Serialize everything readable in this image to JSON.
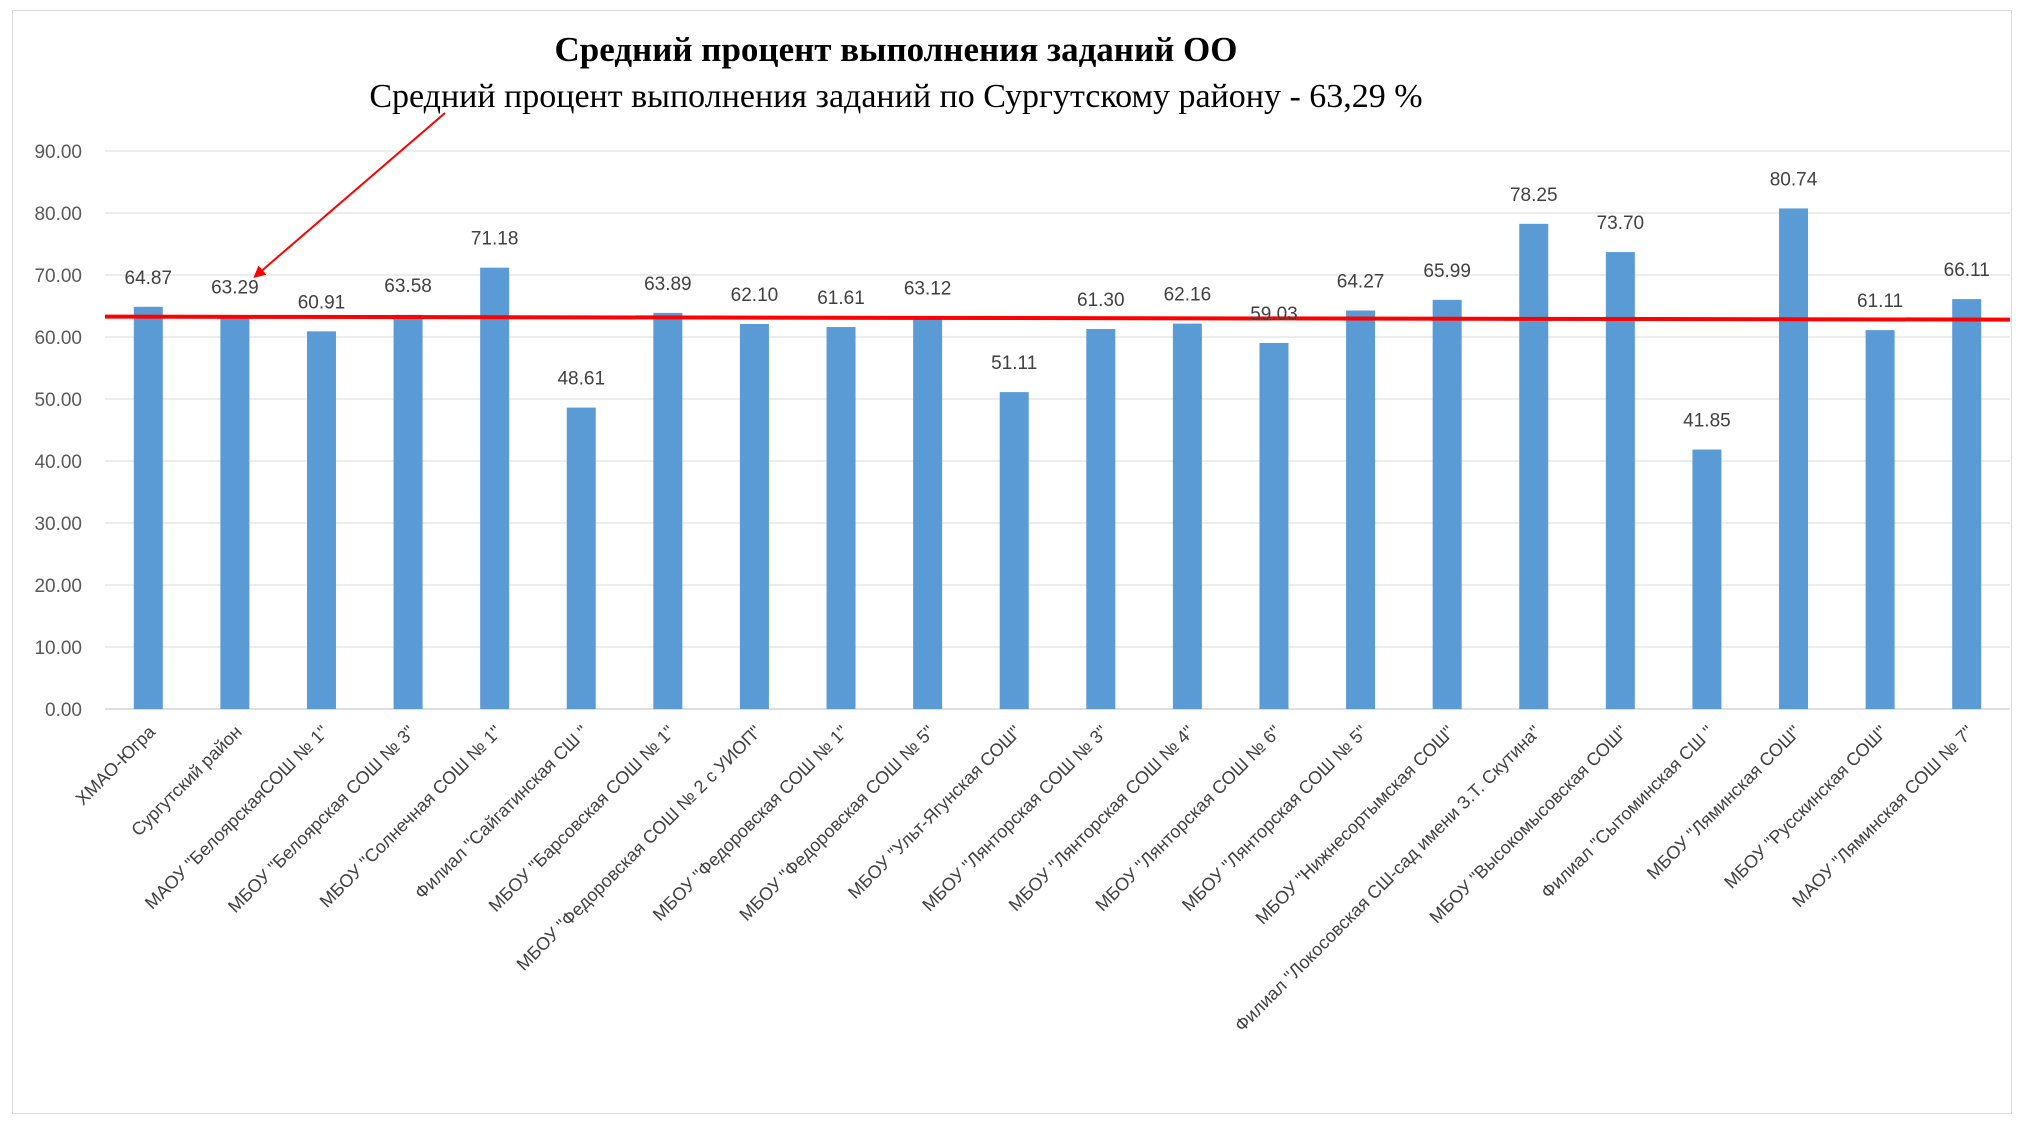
{
  "chart_data": {
    "type": "bar",
    "title": "Средний процент выполнения заданий ОО",
    "subtitle": "Средний процент выполнения заданий по Сургутскому району - 63,29 %",
    "categories": [
      "ХМАО-Югра",
      "Сургутский  район",
      "МАОУ \"БелоярскаяСОШ № 1\"",
      "МБОУ \"Белоярская СОШ № 3\"",
      "МБОУ  \"Солнечная СОШ № 1\"",
      "Филиал \"Сайгатинская СШ \"",
      "МБОУ \"Барсовская СОШ № 1\"",
      "МБОУ \"Федоровская СОШ  № 2 с УИОП\"",
      "МБОУ  \"Федоровская СОШ № 1\"",
      "МБОУ  \"Федоровская СОШ № 5\"",
      "МБОУ \"Ульт-Ягунская СОШ\"",
      "МБОУ  \"Лянторская СОШ № 3\"",
      "МБОУ  \"Лянторская СОШ № 4\"",
      "МБОУ  \"Лянторская СОШ № 6\"",
      "МБОУ  \"Лянторская СОШ № 5\"",
      "МБОУ  \"Нижнесортымская СОШ\"",
      "Филиал  \"Локосовская СШ-сад имени З.Т. Скутина\"",
      "МБОУ \"Высокомысовская СОШ\"",
      "Филиал  \"Сытоминская СШ \"",
      "МБОУ \"Ляминская СОШ\"",
      "МБОУ  \"Русскинская СОШ\"",
      "МАОУ \"Ляминская СОШ № 7\""
    ],
    "values": [
      64.87,
      63.29,
      60.91,
      63.58,
      71.18,
      48.61,
      63.89,
      62.1,
      61.61,
      63.12,
      51.11,
      61.3,
      62.16,
      59.03,
      64.27,
      65.99,
      78.25,
      73.7,
      41.85,
      80.74,
      61.11,
      66.11
    ],
    "value_labels": [
      "64.87",
      "63.29",
      "60.91",
      "63.58",
      "71.18",
      "48.61",
      "63.89",
      "62.10",
      "61.61",
      "63.12",
      "51.11",
      "61.30",
      "62.16",
      "59.03",
      "64.27",
      "65.99",
      "78.25",
      "73.70",
      "41.85",
      "80.74",
      "61.11",
      "66.11"
    ],
    "yticks": [
      "0.00",
      "10.00",
      "20.00",
      "30.00",
      "40.00",
      "50.00",
      "60.00",
      "70.00",
      "80.00",
      "90.00"
    ],
    "ylim": [
      0,
      90
    ],
    "reference_line": 63.29,
    "arrow_target_index": 1,
    "grid": true,
    "colors": {
      "bar": "#5b9bd5",
      "reference_line": "#ff0000",
      "arrow": "#ff0000",
      "grid": "#d9d9d9",
      "axis": "#bfbfbf"
    }
  }
}
